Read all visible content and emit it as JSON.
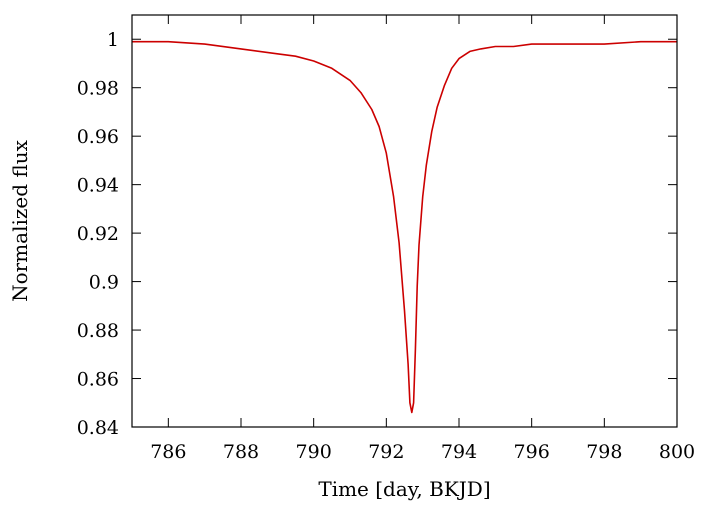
{
  "chart_data": {
    "type": "line",
    "xlabel": "Time [day, BKJD]",
    "ylabel": "Normalized flux",
    "xlim": [
      785,
      800
    ],
    "ylim": [
      0.84,
      1.01
    ],
    "x_ticks": [
      786,
      788,
      790,
      792,
      794,
      796,
      798,
      800
    ],
    "y_ticks": [
      0.84,
      0.86,
      0.88,
      0.9,
      0.92,
      0.94,
      0.96,
      0.98,
      1
    ],
    "x_tick_labels": [
      "786",
      "788",
      "790",
      "792",
      "794",
      "796",
      "798",
      "800"
    ],
    "y_tick_labels": [
      "0.84",
      "0.86",
      "0.88",
      "0.9",
      "0.92",
      "0.94",
      "0.96",
      "0.98",
      "1"
    ],
    "grid": false,
    "legend": "none",
    "series": [
      {
        "color": "#cc0000",
        "x": [
          785.0,
          786.0,
          787.0,
          788.0,
          789.0,
          789.5,
          790.0,
          790.5,
          791.0,
          791.3,
          791.6,
          791.8,
          792.0,
          792.2,
          792.35,
          792.5,
          792.6,
          792.65,
          792.7,
          792.75,
          792.8,
          792.85,
          792.9,
          793.0,
          793.1,
          793.25,
          793.4,
          793.6,
          793.8,
          794.0,
          794.3,
          794.6,
          795.0,
          795.5,
          796.0,
          797.0,
          798.0,
          799.0,
          800.0
        ],
        "y": [
          0.999,
          0.999,
          0.998,
          0.996,
          0.994,
          0.993,
          0.991,
          0.988,
          0.983,
          0.978,
          0.971,
          0.964,
          0.953,
          0.935,
          0.916,
          0.888,
          0.866,
          0.85,
          0.846,
          0.85,
          0.872,
          0.898,
          0.915,
          0.935,
          0.948,
          0.962,
          0.972,
          0.981,
          0.988,
          0.992,
          0.995,
          0.996,
          0.997,
          0.997,
          0.998,
          0.998,
          0.998,
          0.999,
          0.999
        ]
      }
    ]
  }
}
